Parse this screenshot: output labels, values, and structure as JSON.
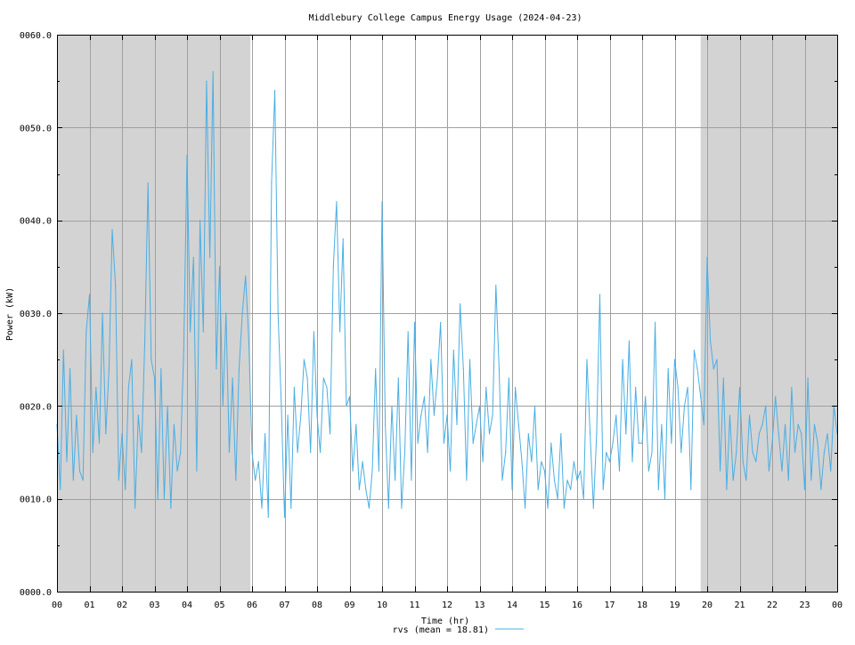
{
  "chart_data": {
    "type": "line",
    "title": "Middlebury College Campus Energy Usage (2024-04-23)",
    "xlabel": "Time (hr)",
    "ylabel": "Power (kW)",
    "xlim": [
      0,
      24
    ],
    "ylim": [
      0,
      60
    ],
    "x_ticks": [
      0,
      1,
      2,
      3,
      4,
      5,
      6,
      7,
      8,
      9,
      10,
      11,
      12,
      13,
      14,
      15,
      16,
      17,
      18,
      19,
      20,
      21,
      22,
      23,
      24
    ],
    "x_tick_labels": [
      "00",
      "01",
      "02",
      "03",
      "04",
      "05",
      "06",
      "07",
      "08",
      "09",
      "10",
      "11",
      "12",
      "13",
      "14",
      "15",
      "16",
      "17",
      "18",
      "19",
      "20",
      "21",
      "22",
      "23",
      "00"
    ],
    "y_ticks": [
      0,
      10,
      20,
      30,
      40,
      50,
      60
    ],
    "y_tick_labels": [
      "0000.0",
      "0010.0",
      "0020.0",
      "0030.0",
      "0040.0",
      "0050.0",
      "0060.0"
    ],
    "grid": true,
    "shaded_regions": [
      {
        "x_start": 0,
        "x_end": 5.95,
        "color": "#d3d3d3"
      },
      {
        "x_start": 19.8,
        "x_end": 24,
        "color": "#d3d3d3"
      }
    ],
    "legend": {
      "position": "bottom-center",
      "label": "rvs (mean = 18.81)"
    },
    "series": [
      {
        "name": "rvs",
        "color": "#4aaee3",
        "x": [
          0,
          0.1,
          0.2,
          0.3,
          0.4,
          0.5,
          0.6,
          0.7,
          0.8,
          0.9,
          1,
          1.1,
          1.2,
          1.3,
          1.4,
          1.5,
          1.6,
          1.7,
          1.8,
          1.9,
          2,
          2.1,
          2.2,
          2.3,
          2.4,
          2.5,
          2.6,
          2.7,
          2.8,
          2.9,
          3,
          3.1,
          3.2,
          3.3,
          3.4,
          3.5,
          3.6,
          3.7,
          3.8,
          3.9,
          4,
          4.1,
          4.2,
          4.3,
          4.4,
          4.5,
          4.6,
          4.7,
          4.8,
          4.9,
          5,
          5.1,
          5.2,
          5.3,
          5.4,
          5.5,
          5.6,
          5.7,
          5.8,
          5.9,
          6,
          6.1,
          6.2,
          6.3,
          6.4,
          6.5,
          6.6,
          6.7,
          6.8,
          6.9,
          7,
          7.1,
          7.2,
          7.3,
          7.4,
          7.5,
          7.6,
          7.7,
          7.8,
          7.9,
          8,
          8.1,
          8.2,
          8.3,
          8.4,
          8.5,
          8.6,
          8.7,
          8.8,
          8.9,
          9,
          9.1,
          9.2,
          9.3,
          9.4,
          9.5,
          9.6,
          9.7,
          9.8,
          9.9,
          10,
          10.1,
          10.2,
          10.3,
          10.4,
          10.5,
          10.6,
          10.7,
          10.8,
          10.9,
          11,
          11.1,
          11.2,
          11.3,
          11.4,
          11.5,
          11.6,
          11.7,
          11.8,
          11.9,
          12,
          12.1,
          12.2,
          12.3,
          12.4,
          12.5,
          12.6,
          12.7,
          12.8,
          12.9,
          13,
          13.1,
          13.2,
          13.3,
          13.4,
          13.5,
          13.6,
          13.7,
          13.8,
          13.9,
          14,
          14.1,
          14.2,
          14.3,
          14.4,
          14.5,
          14.6,
          14.7,
          14.8,
          14.9,
          15,
          15.1,
          15.2,
          15.3,
          15.4,
          15.5,
          15.6,
          15.7,
          15.8,
          15.9,
          16,
          16.1,
          16.2,
          16.3,
          16.4,
          16.5,
          16.6,
          16.7,
          16.8,
          16.9,
          17,
          17.1,
          17.2,
          17.3,
          17.4,
          17.5,
          17.6,
          17.7,
          17.8,
          17.9,
          18,
          18.1,
          18.2,
          18.3,
          18.4,
          18.5,
          18.6,
          18.7,
          18.8,
          18.9,
          19,
          19.1,
          19.2,
          19.3,
          19.4,
          19.5,
          19.6,
          19.7,
          19.8,
          19.9,
          20,
          20.1,
          20.2,
          20.3,
          20.4,
          20.5,
          20.6,
          20.7,
          20.8,
          20.9,
          21,
          21.1,
          21.2,
          21.3,
          21.4,
          21.5,
          21.6,
          21.7,
          21.8,
          21.9,
          22,
          22.1,
          22.2,
          22.3,
          22.4,
          22.5,
          22.6,
          22.7,
          22.8,
          22.9,
          23,
          23.1,
          23.2,
          23.3,
          23.4,
          23.5,
          23.6,
          23.7,
          23.8,
          23.9,
          24
        ],
        "y": [
          18,
          11,
          26,
          14,
          24,
          12,
          19,
          13,
          12,
          28,
          32,
          15,
          22,
          16,
          30,
          17,
          24,
          39,
          33,
          12,
          17,
          11,
          22,
          25,
          9,
          19,
          15,
          27,
          44,
          25,
          23,
          10,
          24,
          10,
          20,
          9,
          18,
          13,
          15,
          26,
          47,
          28,
          36,
          13,
          40,
          28,
          55,
          36,
          56,
          24,
          35,
          20,
          30,
          15,
          23,
          12,
          24,
          30,
          34,
          27,
          15,
          12,
          14,
          9,
          17,
          8,
          44,
          54,
          30,
          20,
          8,
          19,
          9,
          22,
          15,
          19,
          25,
          23,
          15,
          28,
          19,
          15,
          23,
          22,
          17,
          35,
          42,
          28,
          38,
          20,
          21,
          13,
          18,
          11,
          14,
          11,
          9,
          13,
          24,
          13,
          42,
          18,
          9,
          20,
          12,
          23,
          9,
          15,
          28,
          12,
          29,
          16,
          19,
          21,
          15,
          25,
          19,
          23,
          29,
          16,
          19,
          13,
          26,
          18,
          31,
          24,
          12,
          25,
          16,
          18,
          20,
          14,
          22,
          17,
          19,
          33,
          24,
          12,
          15,
          23,
          11,
          22,
          18,
          14,
          9,
          17,
          14,
          20,
          11,
          14,
          13,
          9,
          16,
          12,
          10,
          17,
          9,
          12,
          11,
          14,
          12,
          13,
          10,
          25,
          17,
          9,
          17,
          32,
          11,
          15,
          14,
          16,
          19,
          13,
          25,
          17,
          27,
          14,
          22,
          16,
          16,
          21,
          13,
          15,
          29,
          11,
          18,
          10,
          24,
          16,
          25,
          22,
          15,
          20,
          22,
          11,
          26,
          24,
          21,
          18,
          36,
          27,
          24,
          25,
          13,
          23,
          11,
          19,
          12,
          15,
          22,
          14,
          12,
          19,
          15,
          14,
          17,
          18,
          20,
          13,
          16,
          21,
          17,
          13,
          18,
          12,
          22,
          15,
          18,
          17,
          11,
          23,
          12,
          18,
          16,
          11,
          15,
          17,
          13,
          20,
          17
        ]
      }
    ]
  }
}
